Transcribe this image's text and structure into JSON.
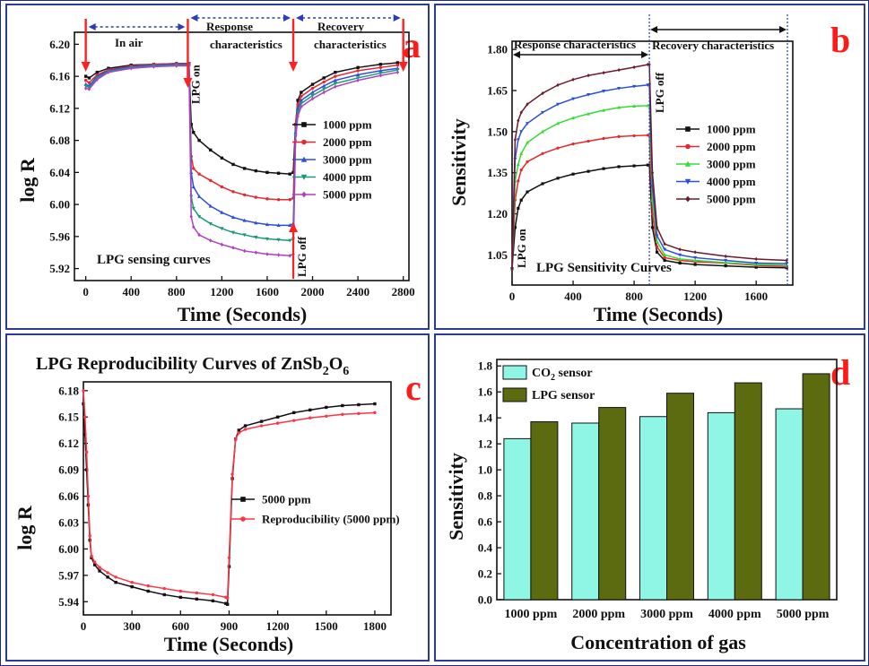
{
  "chart_data": [
    {
      "panel": "a",
      "type": "line",
      "xlabel": "Time (Seconds)",
      "ylabel": "log R",
      "xlim": [
        -100,
        2850
      ],
      "ylim": [
        5.905,
        6.215
      ],
      "xticks": [
        0,
        400,
        800,
        1200,
        1600,
        2000,
        2400,
        2800
      ],
      "yticks": [
        5.92,
        5.96,
        6.0,
        6.04,
        6.08,
        6.12,
        6.16,
        6.2
      ],
      "ytick_decimals": 2,
      "legend_position": "right",
      "annotations": {
        "in_air": "In air",
        "response": "Response characteristics",
        "recovery": "Recovery characteristics",
        "lpg_on": "LPG on",
        "lpg_off": "LPG off",
        "sensing": "LPG sensing curves"
      },
      "series": [
        {
          "name": "1000 ppm",
          "color": "#111111",
          "marker": "square",
          "x": [
            0,
            30,
            100,
            200,
            400,
            600,
            800,
            910,
            930,
            950,
            1000,
            1100,
            1200,
            1300,
            1400,
            1500,
            1600,
            1700,
            1800,
            1830,
            1850,
            1870,
            1900,
            2000,
            2100,
            2200,
            2400,
            2600,
            2750
          ],
          "y": [
            6.16,
            6.158,
            6.165,
            6.17,
            6.174,
            6.175,
            6.176,
            6.176,
            6.1,
            6.09,
            6.08,
            6.068,
            6.058,
            6.05,
            6.045,
            6.042,
            6.04,
            6.039,
            6.038,
            6.04,
            6.1,
            6.13,
            6.14,
            6.15,
            6.158,
            6.165,
            6.171,
            6.175,
            6.177
          ]
        },
        {
          "name": "2000 ppm",
          "color": "#e8262b",
          "marker": "circle",
          "x": [
            0,
            30,
            100,
            200,
            400,
            600,
            800,
            910,
            930,
            950,
            1000,
            1100,
            1200,
            1300,
            1400,
            1500,
            1600,
            1700,
            1800,
            1830,
            1850,
            1870,
            1900,
            2000,
            2100,
            2200,
            2400,
            2600,
            2750
          ],
          "y": [
            6.155,
            6.152,
            6.162,
            6.168,
            6.173,
            6.175,
            6.176,
            6.176,
            6.06,
            6.045,
            6.038,
            6.03,
            6.022,
            6.016,
            6.012,
            6.009,
            6.007,
            6.006,
            6.006,
            6.008,
            6.1,
            6.125,
            6.135,
            6.145,
            6.153,
            6.16,
            6.167,
            6.171,
            6.174
          ]
        },
        {
          "name": "3000 ppm",
          "color": "#2c4ee0",
          "marker": "triangle-up",
          "x": [
            0,
            30,
            100,
            200,
            400,
            600,
            800,
            910,
            930,
            950,
            1000,
            1100,
            1200,
            1300,
            1400,
            1500,
            1600,
            1700,
            1800,
            1830,
            1850,
            1870,
            1900,
            2000,
            2100,
            2200,
            2400,
            2600,
            2750
          ],
          "y": [
            6.15,
            6.148,
            6.16,
            6.167,
            6.172,
            6.174,
            6.175,
            6.175,
            6.04,
            6.022,
            6.01,
            5.998,
            5.99,
            5.984,
            5.98,
            5.977,
            5.975,
            5.974,
            5.974,
            5.976,
            6.09,
            6.12,
            6.13,
            6.14,
            6.148,
            6.155,
            6.162,
            6.167,
            6.17
          ]
        },
        {
          "name": "4000 ppm",
          "color": "#1a9a7a",
          "marker": "triangle-down",
          "x": [
            0,
            30,
            100,
            200,
            400,
            600,
            800,
            910,
            930,
            950,
            1000,
            1100,
            1200,
            1300,
            1400,
            1500,
            1600,
            1700,
            1800,
            1830,
            1850,
            1870,
            1900,
            2000,
            2100,
            2200,
            2400,
            2600,
            2750
          ],
          "y": [
            6.148,
            6.146,
            6.158,
            6.166,
            6.171,
            6.173,
            6.174,
            6.174,
            6.01,
            5.995,
            5.985,
            5.976,
            5.97,
            5.965,
            5.962,
            5.959,
            5.957,
            5.956,
            5.955,
            5.957,
            6.085,
            6.115,
            6.126,
            6.136,
            6.144,
            6.151,
            6.158,
            6.164,
            6.168
          ]
        },
        {
          "name": "5000 ppm",
          "color": "#b040c0",
          "marker": "diamond",
          "x": [
            0,
            30,
            100,
            200,
            400,
            600,
            800,
            910,
            930,
            950,
            1000,
            1100,
            1200,
            1300,
            1400,
            1500,
            1600,
            1700,
            1800,
            1830,
            1850,
            1870,
            1900,
            2000,
            2100,
            2200,
            2400,
            2600,
            2750
          ],
          "y": [
            6.145,
            6.144,
            6.156,
            6.165,
            6.17,
            6.172,
            6.173,
            6.173,
            5.985,
            5.972,
            5.962,
            5.955,
            5.95,
            5.946,
            5.942,
            5.94,
            5.938,
            5.937,
            5.936,
            5.938,
            6.08,
            6.11,
            6.122,
            6.132,
            6.14,
            6.147,
            6.155,
            6.161,
            6.165
          ]
        }
      ]
    },
    {
      "panel": "b",
      "type": "line",
      "xlabel": "Time (Seconds)",
      "ylabel": "Sensitivity",
      "xlim": [
        0,
        1840
      ],
      "ylim": [
        0.94,
        1.83
      ],
      "xticks": [
        0,
        400,
        800,
        1200,
        1600
      ],
      "yticks": [
        1.05,
        1.2,
        1.35,
        1.5,
        1.65,
        1.8
      ],
      "ytick_decimals": 2,
      "legend_position": "right",
      "annotations": {
        "response": "Response characteristics",
        "recovery": "Recovery characteristics",
        "lpg_on": "LPG on",
        "lpg_off": "LPG off",
        "sensitivity": "LPG Sensitivity Curves"
      },
      "series": [
        {
          "name": "1000 ppm",
          "color": "#111111",
          "marker": "square",
          "x": [
            0,
            20,
            40,
            60,
            100,
            200,
            300,
            400,
            500,
            600,
            700,
            800,
            890,
            900,
            920,
            950,
            1000,
            1100,
            1200,
            1400,
            1600,
            1800
          ],
          "y": [
            1.0,
            1.15,
            1.22,
            1.25,
            1.28,
            1.31,
            1.33,
            1.345,
            1.355,
            1.365,
            1.372,
            1.375,
            1.378,
            1.378,
            1.15,
            1.06,
            1.03,
            1.02,
            1.015,
            1.01,
            1.005,
            1.003
          ]
        },
        {
          "name": "2000 ppm",
          "color": "#e8262b",
          "marker": "circle",
          "x": [
            0,
            20,
            40,
            60,
            100,
            200,
            300,
            400,
            500,
            600,
            700,
            800,
            890,
            900,
            920,
            950,
            1000,
            1100,
            1200,
            1400,
            1600,
            1800
          ],
          "y": [
            1.0,
            1.25,
            1.32,
            1.36,
            1.39,
            1.42,
            1.44,
            1.455,
            1.465,
            1.475,
            1.482,
            1.485,
            1.487,
            1.487,
            1.2,
            1.08,
            1.04,
            1.03,
            1.025,
            1.02,
            1.012,
            1.008
          ]
        },
        {
          "name": "3000 ppm",
          "color": "#33dd33",
          "marker": "triangle-up",
          "x": [
            0,
            20,
            40,
            60,
            100,
            200,
            300,
            400,
            500,
            600,
            700,
            800,
            890,
            900,
            920,
            950,
            1000,
            1100,
            1200,
            1400,
            1600,
            1800
          ],
          "y": [
            1.0,
            1.32,
            1.38,
            1.42,
            1.46,
            1.5,
            1.53,
            1.55,
            1.565,
            1.578,
            1.588,
            1.593,
            1.595,
            1.595,
            1.25,
            1.1,
            1.05,
            1.035,
            1.03,
            1.022,
            1.015,
            1.012
          ]
        },
        {
          "name": "4000 ppm",
          "color": "#2c4ee0",
          "marker": "triangle-down",
          "x": [
            0,
            20,
            40,
            60,
            100,
            200,
            300,
            400,
            500,
            600,
            700,
            800,
            890,
            900,
            920,
            950,
            1000,
            1100,
            1200,
            1400,
            1600,
            1800
          ],
          "y": [
            1.0,
            1.4,
            1.47,
            1.5,
            1.53,
            1.57,
            1.6,
            1.62,
            1.635,
            1.648,
            1.658,
            1.665,
            1.67,
            1.67,
            1.3,
            1.12,
            1.07,
            1.05,
            1.04,
            1.03,
            1.02,
            1.018
          ]
        },
        {
          "name": "5000 ppm",
          "color": "#6b1a2a",
          "marker": "diamond",
          "x": [
            0,
            20,
            40,
            60,
            100,
            200,
            300,
            400,
            500,
            600,
            700,
            800,
            890,
            900,
            920,
            950,
            1000,
            1100,
            1200,
            1400,
            1600,
            1800
          ],
          "y": [
            1.0,
            1.47,
            1.54,
            1.57,
            1.6,
            1.64,
            1.67,
            1.69,
            1.705,
            1.715,
            1.725,
            1.735,
            1.745,
            1.745,
            1.35,
            1.15,
            1.09,
            1.07,
            1.06,
            1.045,
            1.035,
            1.03
          ]
        }
      ]
    },
    {
      "panel": "c",
      "type": "line",
      "title": "LPG Reproducibility Curves of ZnSb",
      "title_sub1": "2",
      "title_mid": "O",
      "title_sub2": "6",
      "xlabel": "Time (Seconds)",
      "ylabel": "log R",
      "xlim": [
        0,
        1900
      ],
      "ylim": [
        5.925,
        6.19
      ],
      "xticks": [
        0,
        300,
        600,
        900,
        1200,
        1500,
        1800
      ],
      "yticks": [
        5.94,
        5.97,
        6.0,
        6.03,
        6.06,
        6.09,
        6.12,
        6.15,
        6.18
      ],
      "ytick_decimals": 2,
      "legend_position": "right",
      "series": [
        {
          "name": "5000 ppm",
          "color": "#111111",
          "marker": "square",
          "x": [
            0,
            10,
            20,
            30,
            40,
            50,
            70,
            100,
            150,
            200,
            300,
            400,
            500,
            600,
            700,
            800,
            880,
            890,
            900,
            920,
            940,
            960,
            1000,
            1100,
            1200,
            1300,
            1400,
            1500,
            1600,
            1700,
            1800
          ],
          "y": [
            6.165,
            6.13,
            6.09,
            6.05,
            6.01,
            5.99,
            5.982,
            5.975,
            5.968,
            5.962,
            5.957,
            5.952,
            5.948,
            5.945,
            5.943,
            5.941,
            5.938,
            5.937,
            5.98,
            6.08,
            6.125,
            6.135,
            6.14,
            6.145,
            6.15,
            6.155,
            6.158,
            6.161,
            6.163,
            6.164,
            6.165
          ]
        },
        {
          "name": "Reproducibility (5000 ppm)",
          "color": "#ff3344",
          "marker": "circle",
          "x": [
            0,
            10,
            20,
            30,
            40,
            50,
            70,
            100,
            150,
            200,
            300,
            400,
            500,
            600,
            700,
            800,
            880,
            890,
            900,
            920,
            940,
            960,
            1000,
            1100,
            1200,
            1300,
            1400,
            1500,
            1600,
            1700,
            1800
          ],
          "y": [
            6.18,
            6.15,
            6.11,
            6.06,
            6.015,
            5.992,
            5.985,
            5.979,
            5.973,
            5.968,
            5.962,
            5.958,
            5.955,
            5.952,
            5.95,
            5.948,
            5.945,
            5.944,
            5.99,
            6.085,
            6.125,
            6.132,
            6.136,
            6.14,
            6.143,
            6.146,
            6.149,
            6.151,
            6.153,
            6.154,
            6.155
          ]
        }
      ]
    },
    {
      "panel": "d",
      "type": "bar",
      "xlabel": "Concentration of gas",
      "ylabel": "Sensitivity",
      "ylim": [
        0,
        1.85
      ],
      "yticks": [
        0.0,
        0.2,
        0.4,
        0.6,
        0.8,
        1.0,
        1.2,
        1.4,
        1.6,
        1.8
      ],
      "ytick_decimals": 1,
      "legend_position": "top-left",
      "categories": [
        "1000 ppm",
        "2000 ppm",
        "3000 ppm",
        "4000 ppm",
        "5000 ppm"
      ],
      "series": [
        {
          "name": "CO",
          "name_sub": "2",
          "name_tail": " sensor",
          "color": "#8ff5e5",
          "values": [
            1.24,
            1.36,
            1.41,
            1.44,
            1.47
          ]
        },
        {
          "name": "LPG sensor",
          "color": "#5c6a10",
          "values": [
            1.37,
            1.48,
            1.59,
            1.67,
            1.74
          ]
        }
      ]
    }
  ],
  "panel_labels": {
    "a": "a",
    "b": "b",
    "c": "c",
    "d": "d"
  }
}
